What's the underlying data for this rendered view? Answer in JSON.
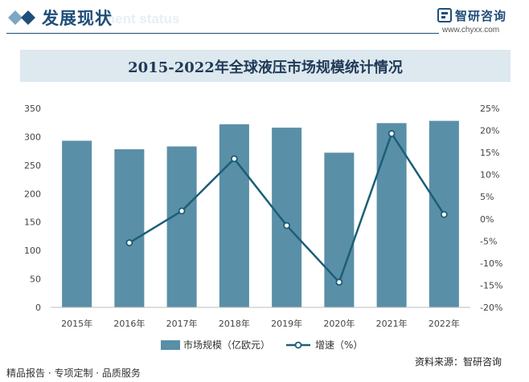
{
  "header": {
    "title": "发展现状",
    "watermark": "ment status",
    "brand_name": "智研咨询",
    "brand_url": "www.chyxx.com"
  },
  "footer": {
    "tagline": "精品报告 · 专项定制 · 品质服务",
    "source": "资料来源：智研咨询"
  },
  "colors": {
    "bar": "#5a8fa8",
    "line": "#1c5e78",
    "title_band": "#dde8ef",
    "brand": "#1f4e79"
  },
  "chart_data": {
    "type": "bar",
    "title": "2015-2022年全球液压市场规模统计情况",
    "categories": [
      "2015年",
      "2016年",
      "2017年",
      "2018年",
      "2019年",
      "2020年",
      "2021年",
      "2022年"
    ],
    "series": [
      {
        "name": "市场规模（亿欧元）",
        "type": "bar",
        "axis": "left",
        "values": [
          293,
          278,
          283,
          322,
          316,
          272,
          324,
          328
        ]
      },
      {
        "name": "增速（%）",
        "type": "line",
        "axis": "right",
        "values": [
          null,
          -5.4,
          1.8,
          13.6,
          -1.5,
          -14.3,
          19.3,
          1.0
        ]
      }
    ],
    "y_left": {
      "min": 0,
      "max": 350,
      "step": 50,
      "ticks": [
        "0",
        "50",
        "100",
        "150",
        "200",
        "250",
        "300",
        "350"
      ]
    },
    "y_right": {
      "min": -20,
      "max": 25,
      "step": 5,
      "ticks": [
        "-20%",
        "-15%",
        "-10%",
        "-5%",
        "0%",
        "5%",
        "10%",
        "15%",
        "20%",
        "25%"
      ]
    },
    "legend_position": "bottom",
    "grid": false
  }
}
